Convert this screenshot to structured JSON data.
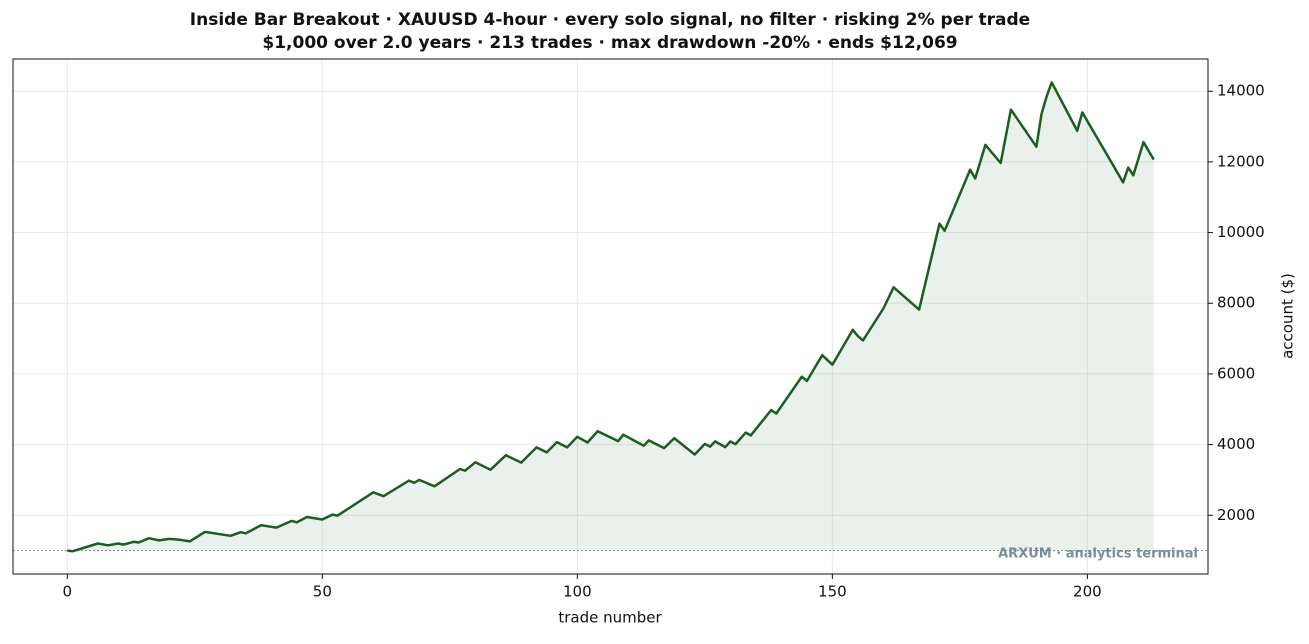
{
  "chart_data": {
    "type": "line",
    "title": "Inside Bar Breakout · XAUUSD 4-hour · every solo signal, no filter · risking 2% per trade",
    "subtitle": "$1,000 over 2.0 years · 213 trades · max drawdown -20% · ends $12,069",
    "x_label": "trade number",
    "y_label": "account ($)",
    "annotation": "ARXUM · analytics terminal",
    "baseline": 1000,
    "x": [
      0,
      1,
      6,
      8,
      10,
      11,
      13,
      14,
      16,
      18,
      20,
      22,
      24,
      27,
      32,
      34,
      35,
      38,
      41,
      44,
      45,
      47,
      50,
      52,
      53,
      60,
      62,
      67,
      68,
      69,
      72,
      77,
      78,
      80,
      83,
      86,
      89,
      92,
      94,
      96,
      98,
      100,
      102,
      104,
      108,
      109,
      113,
      114,
      117,
      119,
      123,
      125,
      126,
      127,
      129,
      130,
      131,
      133,
      134,
      138,
      139,
      144,
      145,
      148,
      150,
      154,
      155,
      156,
      160,
      162,
      167,
      171,
      172,
      177,
      178,
      180,
      183,
      185,
      190,
      191,
      192,
      193,
      198,
      199,
      207,
      208,
      209,
      211,
      213
    ],
    "series": [
      {
        "name": "account",
        "color": "#1b5e20",
        "values": [
          1000,
          980,
          1200,
          1150,
          1200,
          1170,
          1250,
          1230,
          1350,
          1290,
          1330,
          1310,
          1260,
          1530,
          1420,
          1520,
          1490,
          1720,
          1650,
          1840,
          1800,
          1950,
          1880,
          2020,
          1990,
          2650,
          2540,
          2980,
          2920,
          3000,
          2820,
          3310,
          3260,
          3500,
          3290,
          3700,
          3490,
          3920,
          3780,
          4070,
          3920,
          4220,
          4060,
          4380,
          4100,
          4280,
          3970,
          4120,
          3900,
          4180,
          3720,
          4020,
          3940,
          4090,
          3930,
          4090,
          4010,
          4340,
          4260,
          4980,
          4880,
          5920,
          5800,
          6530,
          6260,
          7250,
          7070,
          6950,
          7850,
          8450,
          7820,
          10250,
          10050,
          11780,
          11530,
          12480,
          11970,
          13480,
          12430,
          13350,
          13850,
          14250,
          12880,
          13400,
          11420,
          11840,
          11620,
          12560,
          12069
        ]
      }
    ],
    "xlim": [
      -10.65,
      223.65
    ],
    "ylim": [
      338,
      14912
    ],
    "xticks": [
      0,
      50,
      100,
      150,
      200
    ],
    "yticks": [
      2000,
      4000,
      6000,
      8000,
      10000,
      12000,
      14000
    ],
    "grid": true,
    "fill": true
  }
}
